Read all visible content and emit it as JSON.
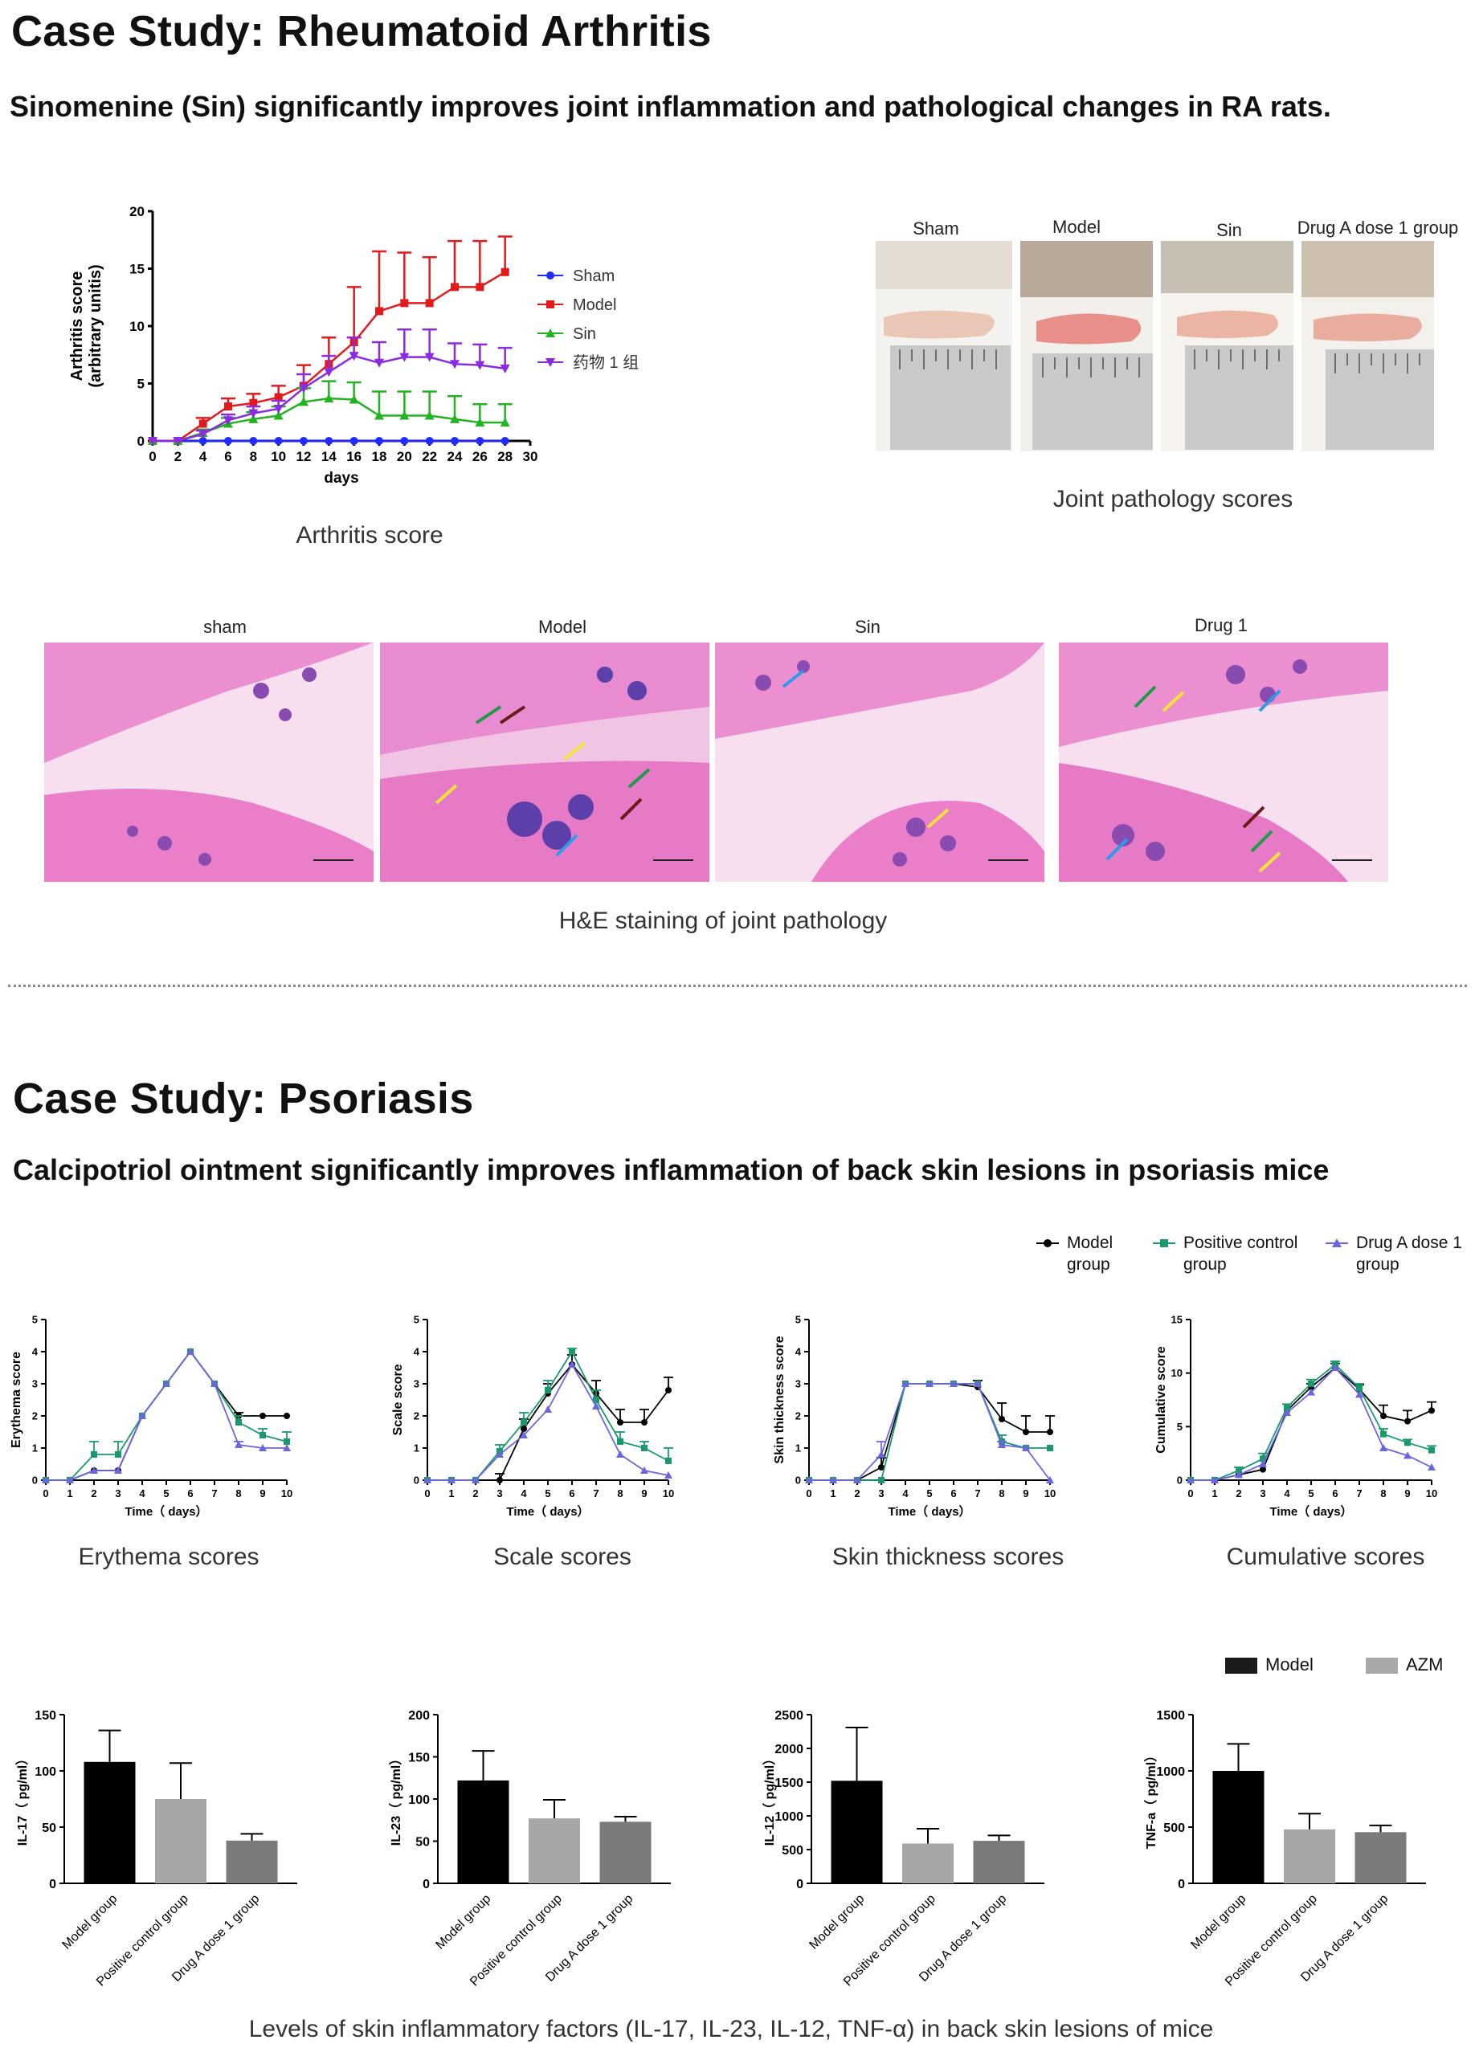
{
  "section1": {
    "heading": "Case Study: Rheumatoid Arthritis",
    "subheading": "Sinomenine (Sin) significantly improves joint inflammation and pathological changes in RA rats.",
    "arthritis_caption": "Arthritis score",
    "joint_caption": "Joint pathology scores",
    "he_caption": "H&E staining of joint pathology",
    "joint_photo_labels": [
      "Sham",
      "Model",
      "Sin",
      "Drug A dose 1 group"
    ],
    "he_labels": [
      "sham",
      "Model",
      "Sin",
      "Drug 1"
    ],
    "colors": {
      "sham": "#1f2bff",
      "model": "#e31a1c",
      "sin": "#22b322",
      "drug": "#8a2be2"
    }
  },
  "section2": {
    "heading": "Case Study: Psoriasis",
    "subheading": "Calcipotriol ointment significantly improves inflammation of back skin lesions in psoriasis mice",
    "line_captions": [
      "Erythema scores",
      "Scale scores",
      "Skin thickness scores",
      "Cumulative scores"
    ],
    "bar_caption": "Levels of skin inflammatory factors (IL-17, IL-23, IL-12, TNF-α) in back skin lesions of mice",
    "legend_lines": [
      {
        "l1": "Model",
        "l2": "group",
        "color": "#000000"
      },
      {
        "l1": "Positive control",
        "l2": "group",
        "color": "#1a9a6c"
      },
      {
        "l1": "Drug A dose 1",
        "l2": "group",
        "color": "#6b66e0"
      }
    ],
    "legend_bars": [
      {
        "label": "Model",
        "color": "#1a1a1a"
      },
      {
        "label": "AZM",
        "color": "#a8a8a8"
      }
    ]
  },
  "chart_data": [
    {
      "type": "line",
      "xlabel": "days",
      "ylabel": "Arthritis score\n(arbitrary unitis)",
      "xlim": [
        0,
        30
      ],
      "ylim": [
        0,
        20
      ],
      "xticks": [
        0,
        2,
        4,
        6,
        8,
        10,
        12,
        14,
        16,
        18,
        20,
        22,
        24,
        26,
        28,
        30
      ],
      "yticks": [
        0,
        5,
        10,
        15,
        20
      ],
      "x": [
        0,
        2,
        4,
        6,
        8,
        10,
        12,
        14,
        16,
        18,
        20,
        22,
        24,
        26,
        28
      ],
      "series": [
        {
          "name": "Sham",
          "color": "#1f2bff",
          "marker": "circle",
          "values": [
            0,
            0,
            0,
            0,
            0,
            0,
            0,
            0,
            0,
            0,
            0,
            0,
            0,
            0,
            0
          ],
          "err": [
            0,
            0,
            0,
            0,
            0,
            0,
            0,
            0,
            0,
            0,
            0,
            0,
            0,
            0,
            0
          ]
        },
        {
          "name": "Model",
          "color": "#e31a1c",
          "marker": "square",
          "values": [
            0,
            0,
            1.5,
            3.0,
            3.3,
            3.8,
            4.8,
            6.7,
            8.6,
            11.3,
            12.0,
            12.0,
            13.4,
            13.4,
            14.7
          ],
          "err": [
            0,
            0,
            0.5,
            0.7,
            0.8,
            1.0,
            1.8,
            2.3,
            4.8,
            5.2,
            4.4,
            4.0,
            4.0,
            4.0,
            3.1
          ]
        },
        {
          "name": "Sin",
          "color": "#22b322",
          "marker": "triangle-up",
          "values": [
            0,
            0,
            0.7,
            1.5,
            1.9,
            2.2,
            3.4,
            3.7,
            3.6,
            2.2,
            2.2,
            2.2,
            1.9,
            1.6,
            1.6
          ],
          "err": [
            0,
            0,
            0.3,
            0.5,
            0.6,
            0.8,
            1.2,
            1.5,
            1.5,
            2.1,
            2.1,
            2.1,
            2.0,
            1.6,
            1.6
          ]
        },
        {
          "name": "药物 1 组",
          "color": "#8a2be2",
          "marker": "triangle-down",
          "values": [
            0,
            0,
            0.6,
            1.8,
            2.4,
            2.8,
            4.6,
            6.0,
            7.4,
            6.8,
            7.3,
            7.3,
            6.7,
            6.6,
            6.3
          ],
          "err": [
            0,
            0,
            0.3,
            0.5,
            0.6,
            0.7,
            1.2,
            1.4,
            1.6,
            1.8,
            2.4,
            2.4,
            1.8,
            1.8,
            1.8
          ]
        }
      ]
    },
    {
      "type": "line",
      "xlabel": "Time（ days）",
      "ylabel": "Erythema score",
      "xlim": [
        0,
        10
      ],
      "ylim": [
        0,
        5
      ],
      "yticks": [
        0,
        1,
        2,
        3,
        4,
        5
      ],
      "x": [
        0,
        1,
        2,
        3,
        4,
        5,
        6,
        7,
        8,
        9,
        10
      ],
      "series": [
        {
          "name": "Model group",
          "color": "#000000",
          "values": [
            0,
            0,
            0.3,
            0.3,
            2,
            3,
            4,
            3,
            2,
            2,
            2
          ],
          "err": [
            0,
            0,
            0,
            0,
            0,
            0,
            0,
            0,
            0.1,
            0,
            0
          ]
        },
        {
          "name": "Positive control group",
          "color": "#1a9a6c",
          "values": [
            0,
            0,
            0.8,
            0.8,
            2,
            3,
            4,
            3,
            1.8,
            1.4,
            1.2
          ],
          "err": [
            0,
            0,
            0.4,
            0.4,
            0,
            0,
            0,
            0,
            0.2,
            0.2,
            0.3
          ]
        },
        {
          "name": "Drug A dose 1 group",
          "color": "#6b66e0",
          "values": [
            0,
            0,
            0.3,
            0.3,
            2,
            3,
            4,
            3,
            1.1,
            1.0,
            1.0
          ],
          "err": [
            0,
            0,
            0,
            0,
            0,
            0,
            0,
            0,
            0.1,
            0,
            0
          ]
        }
      ]
    },
    {
      "type": "line",
      "xlabel": "Time（ days）",
      "ylabel": "Scale score",
      "xlim": [
        0,
        10
      ],
      "ylim": [
        0,
        5
      ],
      "yticks": [
        0,
        1,
        2,
        3,
        4,
        5
      ],
      "x": [
        0,
        1,
        2,
        3,
        4,
        5,
        6,
        7,
        8,
        9,
        10
      ],
      "series": [
        {
          "name": "Model group",
          "color": "#000000",
          "values": [
            0,
            0,
            0,
            0,
            1.6,
            2.7,
            3.6,
            2.7,
            1.8,
            1.8,
            2.8
          ],
          "err": [
            0,
            0,
            0,
            0.2,
            0.3,
            0.3,
            0.3,
            0.4,
            0.4,
            0.4,
            0.4
          ]
        },
        {
          "name": "Positive control group",
          "color": "#1a9a6c",
          "values": [
            0,
            0,
            0,
            0.9,
            1.8,
            2.8,
            4.0,
            2.5,
            1.2,
            1.0,
            0.6
          ],
          "err": [
            0,
            0,
            0,
            0.2,
            0.3,
            0.3,
            0.1,
            0.3,
            0.3,
            0.2,
            0.4
          ]
        },
        {
          "name": "Drug A dose 1 group",
          "color": "#6b66e0",
          "values": [
            0,
            0,
            0,
            0.8,
            1.4,
            2.2,
            3.6,
            2.3,
            0.8,
            0.3,
            0.15
          ],
          "err": [
            0,
            0,
            0,
            0,
            0,
            0,
            0,
            0,
            0,
            0,
            0
          ]
        }
      ]
    },
    {
      "type": "line",
      "xlabel": "Time（ days）",
      "ylabel": "Skin thickness score",
      "xlim": [
        0,
        10
      ],
      "ylim": [
        0,
        5
      ],
      "yticks": [
        0,
        1,
        2,
        3,
        4,
        5
      ],
      "x": [
        0,
        1,
        2,
        3,
        4,
        5,
        6,
        7,
        8,
        9,
        10
      ],
      "series": [
        {
          "name": "Model group",
          "color": "#000000",
          "values": [
            0,
            0,
            0,
            0.4,
            3,
            3,
            3,
            2.9,
            1.9,
            1.5,
            1.5
          ],
          "err": [
            0,
            0,
            0,
            0.3,
            0,
            0,
            0,
            0.2,
            0.5,
            0.5,
            0.5
          ]
        },
        {
          "name": "Positive control group",
          "color": "#1a9a6c",
          "values": [
            0,
            0,
            0,
            0,
            3,
            3,
            3,
            3,
            1.2,
            1,
            1
          ],
          "err": [
            0,
            0,
            0,
            0,
            0,
            0,
            0,
            0,
            0.2,
            0,
            0
          ]
        },
        {
          "name": "Drug A dose 1 group",
          "color": "#6b66e0",
          "values": [
            0,
            0,
            0,
            0.8,
            3,
            3,
            3,
            3,
            1.1,
            1.0,
            0
          ],
          "err": [
            0,
            0,
            0,
            0.4,
            0,
            0,
            0,
            0,
            0.1,
            0,
            0
          ]
        }
      ]
    },
    {
      "type": "line",
      "xlabel": "Time（ days）",
      "ylabel": "Cumulative score",
      "xlim": [
        0,
        10
      ],
      "ylim": [
        0,
        15
      ],
      "yticks": [
        0,
        5,
        10,
        15
      ],
      "x": [
        0,
        1,
        2,
        3,
        4,
        5,
        6,
        7,
        8,
        9,
        10
      ],
      "series": [
        {
          "name": "Model group",
          "color": "#000000",
          "values": [
            0,
            0,
            0.5,
            1,
            6.5,
            8.7,
            10.5,
            8.5,
            6,
            5.5,
            6.5
          ],
          "err": [
            0,
            0,
            0,
            0,
            0,
            0.3,
            0.4,
            0.4,
            1,
            1,
            0.8
          ]
        },
        {
          "name": "Positive control group",
          "color": "#1a9a6c",
          "values": [
            0,
            0,
            0.9,
            2,
            6.8,
            9,
            10.8,
            8.6,
            4.3,
            3.5,
            2.8
          ],
          "err": [
            0,
            0,
            0.3,
            0.5,
            0.3,
            0.4,
            0.3,
            0.4,
            0.5,
            0.3,
            0.4
          ]
        },
        {
          "name": "Drug A dose 1 group",
          "color": "#6b66e0",
          "values": [
            0,
            0,
            0.5,
            1.5,
            6.3,
            8.2,
            10.5,
            8,
            3,
            2.3,
            1.2
          ],
          "err": [
            0,
            0,
            0,
            0,
            0,
            0,
            0,
            0,
            0,
            0,
            0
          ]
        }
      ]
    },
    {
      "type": "bar",
      "ylabel": "IL-17（ pg/ml）",
      "ylim": [
        0,
        150
      ],
      "yticks": [
        0,
        50,
        100,
        150
      ],
      "categories": [
        "Model group",
        "Positive control group",
        "Drug A dose 1 group"
      ],
      "values": [
        108,
        75,
        38
      ],
      "err": [
        28,
        32,
        6
      ],
      "colors": [
        "#000000",
        "#a6a6a6",
        "#7a7a7a"
      ]
    },
    {
      "type": "bar",
      "ylabel": "IL-23（ pg/ml）",
      "ylim": [
        0,
        200
      ],
      "yticks": [
        0,
        50,
        100,
        150,
        200
      ],
      "categories": [
        "Model group",
        "Positive control group",
        "Drug A dose 1 group"
      ],
      "values": [
        122,
        77,
        73
      ],
      "err": [
        35,
        22,
        6
      ],
      "colors": [
        "#000000",
        "#a6a6a6",
        "#7a7a7a"
      ]
    },
    {
      "type": "bar",
      "ylabel": "IL-12（ pg/ml）",
      "ylim": [
        0,
        2500
      ],
      "yticks": [
        0,
        500,
        1000,
        1500,
        2000,
        2500
      ],
      "categories": [
        "Model group",
        "Positive control group",
        "Drug A dose 1 group"
      ],
      "values": [
        1520,
        590,
        630
      ],
      "err": [
        790,
        220,
        80
      ],
      "colors": [
        "#000000",
        "#a6a6a6",
        "#7a7a7a"
      ]
    },
    {
      "type": "bar",
      "ylabel": "TNF-a（ pg/ml）",
      "ylim": [
        0,
        1500
      ],
      "yticks": [
        0,
        500,
        1000,
        1500
      ],
      "categories": [
        "Model group",
        "Positive control group",
        "Drug A dose 1 group"
      ],
      "values": [
        1000,
        480,
        455
      ],
      "err": [
        240,
        140,
        60
      ],
      "colors": [
        "#000000",
        "#a6a6a6",
        "#7a7a7a"
      ]
    }
  ]
}
